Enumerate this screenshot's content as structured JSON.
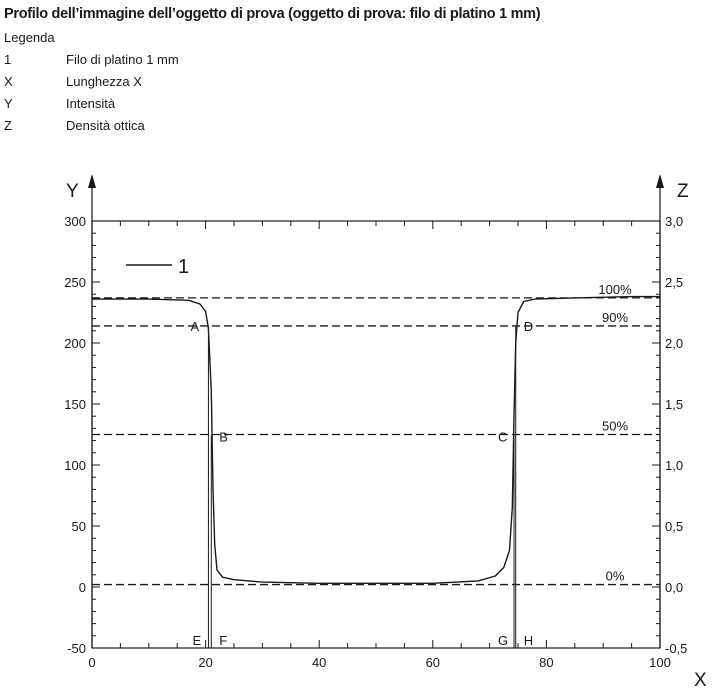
{
  "figure": {
    "title": "Profilo dell’immagine dell’oggetto di prova (oggetto di prova: filo di platino 1 mm)",
    "legend_heading": "Legenda",
    "legend": [
      {
        "key": "1",
        "text": "Filo di platino 1 mm"
      },
      {
        "key": "X",
        "text": "Lunghezza X"
      },
      {
        "key": "Y",
        "text": "Intensità"
      },
      {
        "key": "Z",
        "text": "Densità ottica"
      }
    ]
  },
  "chart_data": {
    "type": "line",
    "title": "",
    "xlabel": "X",
    "ylabel": "Y",
    "y2label": "Z",
    "xlim": [
      0,
      100
    ],
    "ylim": [
      -50,
      300
    ],
    "y2lim": [
      -0.5,
      3.0
    ],
    "x_ticks": [
      "0",
      "20",
      "40",
      "60",
      "80",
      "100"
    ],
    "y_ticks": [
      "-50",
      "0",
      "50",
      "100",
      "150",
      "200",
      "250",
      "300"
    ],
    "y2_ticks": [
      "-0,5",
      "0,0",
      "0,5",
      "1,0",
      "1,5",
      "2,0",
      "2,5",
      "3,0"
    ],
    "series": [
      {
        "name": "1",
        "color": "#1a1a1a",
        "x": [
          0,
          10,
          17,
          19,
          20,
          20.5,
          21,
          21.3,
          21.6,
          22,
          23,
          25,
          30,
          40,
          50,
          60,
          68,
          71,
          72.5,
          73.5,
          74,
          74.3,
          74.6,
          75,
          76,
          78,
          85,
          95,
          100
        ],
        "y": [
          236,
          236,
          235,
          232,
          226,
          212,
          160,
          80,
          35,
          14,
          8,
          6,
          4,
          3,
          3,
          3,
          5,
          9,
          16,
          30,
          65,
          140,
          200,
          225,
          234,
          236,
          237,
          238,
          238
        ]
      }
    ],
    "reference_lines": [
      {
        "label": "100%",
        "y": 237
      },
      {
        "label": "90%",
        "y": 214
      },
      {
        "label": "50%",
        "y": 125
      },
      {
        "label": "0%",
        "y": 2
      }
    ],
    "points": [
      {
        "label": "A",
        "x": 20.5,
        "y": 214
      },
      {
        "label": "B",
        "x": 21,
        "y": 125
      },
      {
        "label": "C",
        "x": 74.3,
        "y": 125
      },
      {
        "label": "D",
        "x": 74.6,
        "y": 214
      },
      {
        "label": "E",
        "x": 20.5,
        "y": -50
      },
      {
        "label": "F",
        "x": 21,
        "y": -50
      },
      {
        "label": "G",
        "x": 74.3,
        "y": -50
      },
      {
        "label": "H",
        "x": 74.6,
        "y": -50
      }
    ],
    "grid": false,
    "legend_position": "top-left"
  }
}
